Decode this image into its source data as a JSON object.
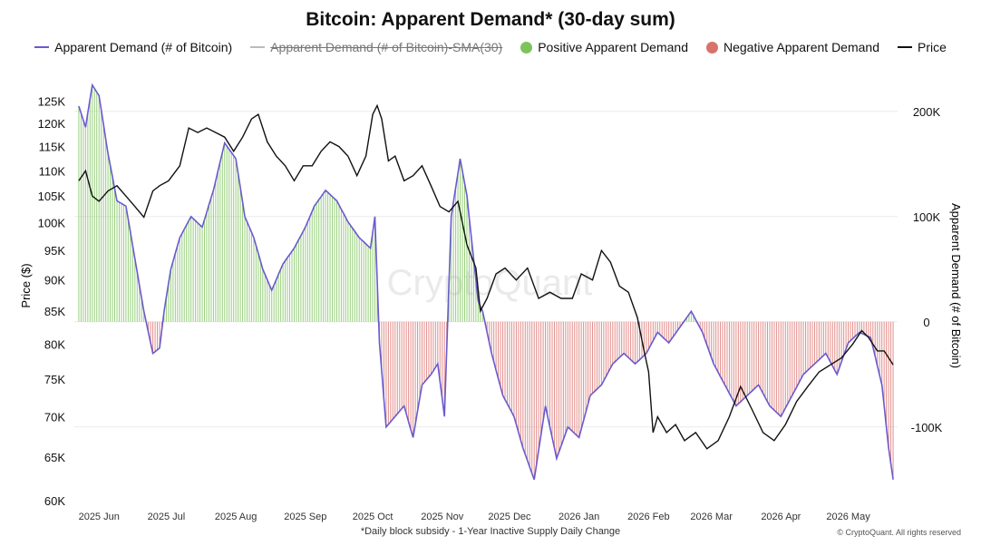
{
  "title": "Bitcoin: Apparent Demand* (30-day sum)",
  "footnote": "*Daily block subsidy - 1-Year Inactive Supply Daily Change",
  "credit": "© CryptoQuant. All rights reserved",
  "watermark": "CryptoQuant",
  "legend": [
    {
      "label": "Apparent Demand (# of Bitcoin)",
      "kind": "line",
      "color": "#6a5acd"
    },
    {
      "label": "Apparent Demand (# of Bitcoin)-SMA(30)",
      "kind": "line-muted",
      "color": "#bbbbbb"
    },
    {
      "label": "Positive Apparent Demand",
      "kind": "dot",
      "color": "#7dc35b"
    },
    {
      "label": "Negative Apparent Demand",
      "kind": "dot",
      "color": "#d9726d"
    },
    {
      "label": "Price",
      "kind": "line",
      "color": "#111111"
    }
  ],
  "chart_data": {
    "type": "line",
    "title": "Bitcoin: Apparent Demand* (30-day sum)",
    "xlabel": "",
    "ylabel_left": "Price ($)",
    "ylabel_right": "Apparent Demand (# of Bitcoin)",
    "x_ticks": [
      "2025 Jun",
      "2025 Jul",
      "2025 Aug",
      "2025 Sep",
      "2025 Oct",
      "2025 Nov",
      "2025 Dec",
      "2026 Jan",
      "2026 Feb",
      "2026 Mar",
      "2026 Apr",
      "2026 May"
    ],
    "left_axis": {
      "scale": "log",
      "ylim": [
        60000,
        130000
      ],
      "ticks": [
        60000,
        65000,
        70000,
        75000,
        80000,
        85000,
        90000,
        95000,
        100000,
        105000,
        110000,
        115000,
        120000,
        125000
      ],
      "tick_labels": [
        "60K",
        "65K",
        "70K",
        "75K",
        "80K",
        "85K",
        "90K",
        "95K",
        "100K",
        "105K",
        "110K",
        "115K",
        "120K",
        "125K"
      ]
    },
    "right_axis": {
      "ylim": [
        -170000,
        230000
      ],
      "ticks": [
        -100000,
        0,
        100000,
        200000
      ],
      "tick_labels": [
        "-100K",
        "0",
        "100K",
        "200K"
      ]
    },
    "grid": true,
    "legend_position": "top",
    "series": [
      {
        "name": "Apparent Demand (# of Bitcoin)",
        "axis": "right",
        "color": "#6a5acd",
        "x": [
          "2025-05-26",
          "2025-05-29",
          "2025-06-01",
          "2025-06-04",
          "2025-06-08",
          "2025-06-12",
          "2025-06-16",
          "2025-06-20",
          "2025-06-24",
          "2025-06-28",
          "2025-07-01",
          "2025-07-03",
          "2025-07-06",
          "2025-07-10",
          "2025-07-15",
          "2025-07-20",
          "2025-07-25",
          "2025-07-30",
          "2025-08-04",
          "2025-08-08",
          "2025-08-12",
          "2025-08-16",
          "2025-08-20",
          "2025-08-25",
          "2025-08-30",
          "2025-09-04",
          "2025-09-08",
          "2025-09-13",
          "2025-09-18",
          "2025-09-23",
          "2025-09-28",
          "2025-10-03",
          "2025-10-05",
          "2025-10-07",
          "2025-10-10",
          "2025-10-14",
          "2025-10-18",
          "2025-10-22",
          "2025-10-26",
          "2025-10-30",
          "2025-11-02",
          "2025-11-05",
          "2025-11-08",
          "2025-11-12",
          "2025-11-15",
          "2025-11-18",
          "2025-11-20",
          "2025-11-22",
          "2025-11-26",
          "2025-12-01",
          "2025-12-06",
          "2025-12-10",
          "2025-12-15",
          "2025-12-20",
          "2025-12-25",
          "2025-12-30",
          "2026-01-04",
          "2026-01-09",
          "2026-01-14",
          "2026-01-19",
          "2026-01-24",
          "2026-01-29",
          "2026-02-03",
          "2026-02-08",
          "2026-02-13",
          "2026-02-18",
          "2026-02-23",
          "2026-02-28",
          "2026-03-05",
          "2026-03-10",
          "2026-03-15",
          "2026-03-20",
          "2026-03-25",
          "2026-03-30",
          "2026-04-04",
          "2026-04-09",
          "2026-04-14",
          "2026-04-19",
          "2026-04-24",
          "2026-04-29",
          "2026-05-04",
          "2026-05-09",
          "2026-05-14",
          "2026-05-19",
          "2026-05-22",
          "2026-05-24"
        ],
        "values": [
          205000,
          185000,
          225000,
          215000,
          160000,
          115000,
          110000,
          60000,
          10000,
          -30000,
          -25000,
          10000,
          50000,
          80000,
          100000,
          90000,
          125000,
          170000,
          155000,
          100000,
          80000,
          50000,
          30000,
          55000,
          70000,
          90000,
          110000,
          125000,
          115000,
          95000,
          80000,
          70000,
          100000,
          -20000,
          -100000,
          -90000,
          -80000,
          -110000,
          -60000,
          -50000,
          -40000,
          -90000,
          100000,
          155000,
          120000,
          60000,
          20000,
          10000,
          -30000,
          -70000,
          -90000,
          -120000,
          -150000,
          -80000,
          -130000,
          -100000,
          -110000,
          -70000,
          -60000,
          -40000,
          -30000,
          -40000,
          -30000,
          -10000,
          -20000,
          -5000,
          10000,
          -10000,
          -40000,
          -60000,
          -80000,
          -70000,
          -60000,
          -80000,
          -90000,
          -70000,
          -50000,
          -40000,
          -30000,
          -50000,
          -20000,
          -10000,
          -15000,
          -60000,
          -120000,
          -150000
        ]
      },
      {
        "name": "Price",
        "axis": "left",
        "color": "#111111",
        "x": [
          "2025-05-26",
          "2025-05-29",
          "2025-06-01",
          "2025-06-04",
          "2025-06-08",
          "2025-06-12",
          "2025-06-16",
          "2025-06-20",
          "2025-06-24",
          "2025-06-28",
          "2025-07-01",
          "2025-07-05",
          "2025-07-10",
          "2025-07-14",
          "2025-07-18",
          "2025-07-22",
          "2025-07-26",
          "2025-07-30",
          "2025-08-03",
          "2025-08-07",
          "2025-08-11",
          "2025-08-14",
          "2025-08-18",
          "2025-08-22",
          "2025-08-26",
          "2025-08-30",
          "2025-09-03",
          "2025-09-07",
          "2025-09-11",
          "2025-09-15",
          "2025-09-19",
          "2025-09-23",
          "2025-09-27",
          "2025-10-01",
          "2025-10-04",
          "2025-10-06",
          "2025-10-08",
          "2025-10-11",
          "2025-10-14",
          "2025-10-18",
          "2025-10-22",
          "2025-10-26",
          "2025-10-30",
          "2025-11-03",
          "2025-11-07",
          "2025-11-11",
          "2025-11-15",
          "2025-11-19",
          "2025-11-21",
          "2025-11-24",
          "2025-11-28",
          "2025-12-02",
          "2025-12-07",
          "2025-12-12",
          "2025-12-17",
          "2025-12-22",
          "2025-12-27",
          "2026-01-01",
          "2026-01-05",
          "2026-01-10",
          "2026-01-14",
          "2026-01-18",
          "2026-01-22",
          "2026-01-26",
          "2026-01-30",
          "2026-02-02",
          "2026-02-04",
          "2026-02-06",
          "2026-02-08",
          "2026-02-12",
          "2026-02-16",
          "2026-02-20",
          "2026-02-25",
          "2026-03-02",
          "2026-03-07",
          "2026-03-12",
          "2026-03-17",
          "2026-03-22",
          "2026-03-27",
          "2026-04-01",
          "2026-04-06",
          "2026-04-11",
          "2026-04-16",
          "2026-04-21",
          "2026-04-26",
          "2026-05-01",
          "2026-05-06",
          "2026-05-10",
          "2026-05-13",
          "2026-05-17",
          "2026-05-20",
          "2026-05-24"
        ],
        "values": [
          108000,
          110000,
          105000,
          104000,
          106000,
          107000,
          105000,
          103000,
          101000,
          106000,
          107000,
          108000,
          111000,
          119000,
          118000,
          119000,
          118000,
          117000,
          114000,
          117000,
          121000,
          122000,
          116000,
          113000,
          111000,
          108000,
          111000,
          111000,
          114000,
          116000,
          115000,
          113000,
          109000,
          113000,
          122000,
          124000,
          121000,
          112000,
          113000,
          108000,
          109000,
          111000,
          107000,
          103000,
          102000,
          104000,
          96000,
          92000,
          85000,
          87000,
          91000,
          92000,
          90000,
          92000,
          87000,
          88000,
          87000,
          87000,
          91000,
          90000,
          95000,
          93000,
          89000,
          88000,
          84000,
          79000,
          76000,
          68000,
          70000,
          68000,
          69000,
          67000,
          68000,
          66000,
          67000,
          70000,
          74000,
          71000,
          68000,
          67000,
          69000,
          72000,
          74000,
          76000,
          77000,
          78000,
          80000,
          82000,
          81000,
          79000,
          79000,
          77000
        ]
      }
    ]
  }
}
